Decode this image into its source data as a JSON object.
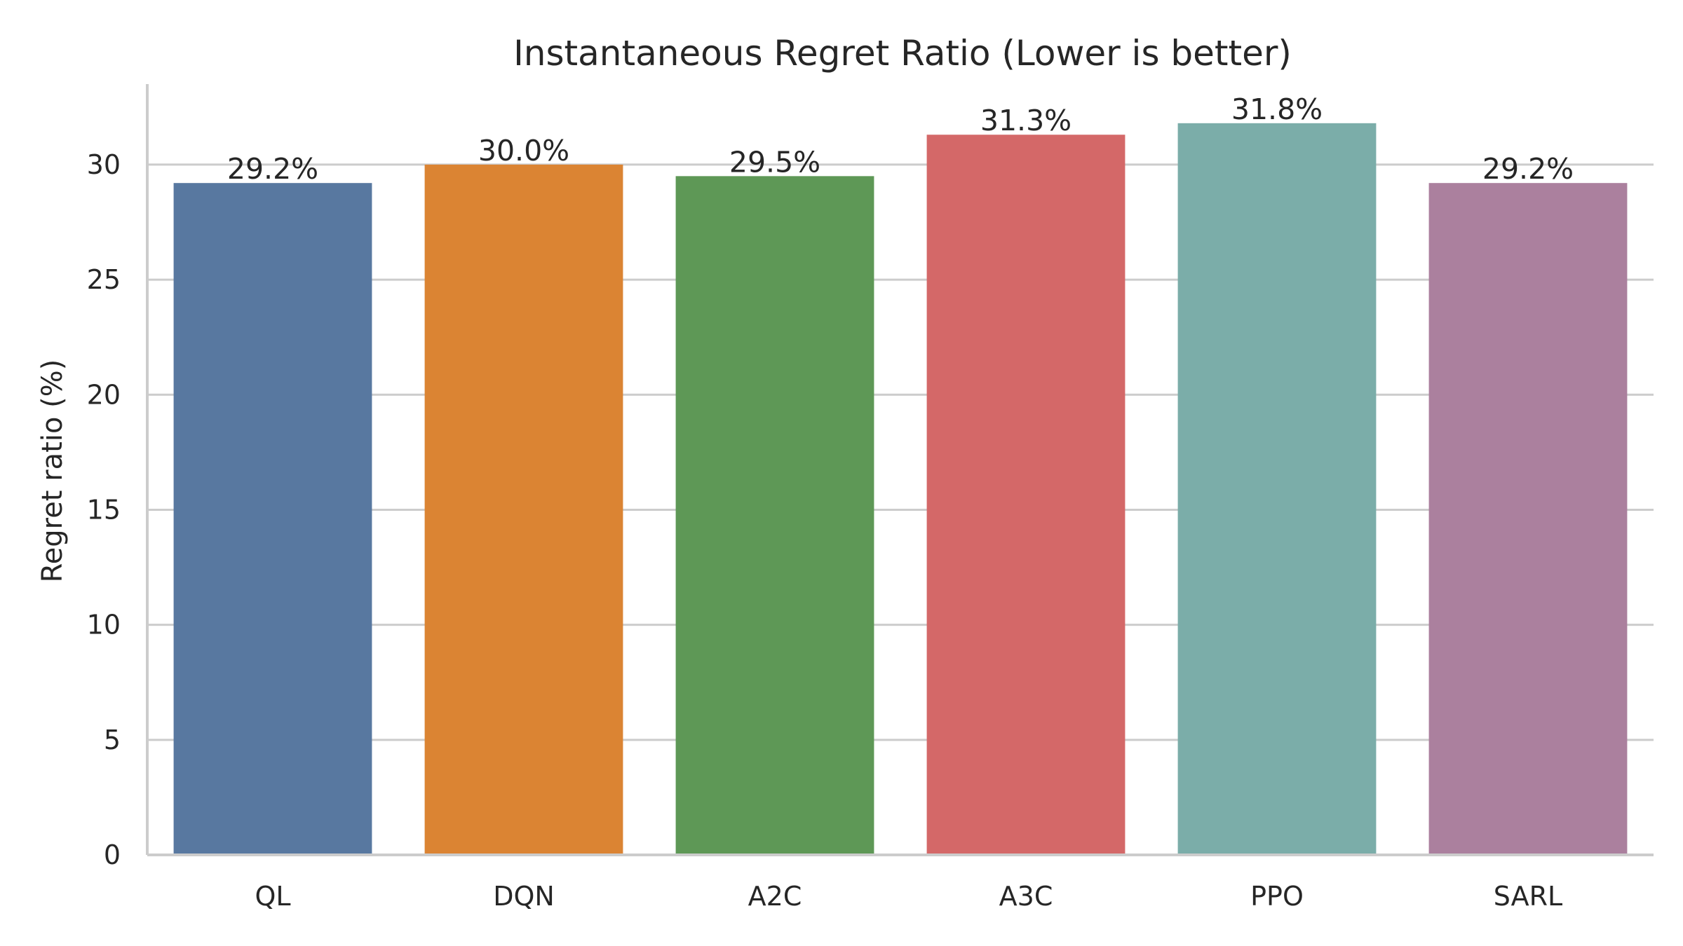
{
  "chart_data": {
    "type": "bar",
    "title": "Instantaneous Regret Ratio (Lower is better)",
    "xlabel": "",
    "ylabel": "Regret ratio (%)",
    "categories": [
      "QL",
      "DQN",
      "A2C",
      "A3C",
      "PPO",
      "SARL"
    ],
    "values": [
      29.2,
      30.0,
      29.5,
      31.3,
      31.8,
      29.2
    ],
    "value_labels": [
      "29.2%",
      "30.0%",
      "29.5%",
      "31.3%",
      "31.8%",
      "29.2%"
    ],
    "colors": [
      "#5878a0",
      "#db8433",
      "#5e9856",
      "#d46868",
      "#7bada9",
      "#ab809e"
    ],
    "ylim": [
      0,
      33.5
    ],
    "yticks": [
      0,
      5,
      10,
      15,
      20,
      25,
      30
    ],
    "ytick_labels": [
      "0",
      "5",
      "10",
      "15",
      "20",
      "25",
      "30"
    ],
    "grid": true,
    "legend": "none"
  }
}
